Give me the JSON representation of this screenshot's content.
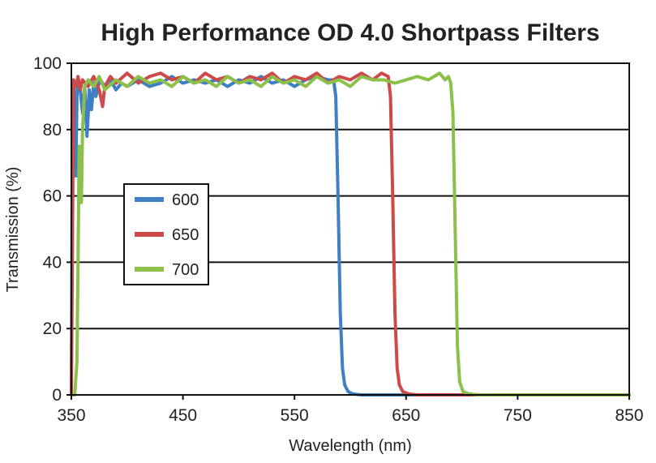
{
  "chart_data": {
    "type": "line",
    "title": "High Performance OD 4.0 Shortpass Filters",
    "xlabel": "Wavelength (nm)",
    "ylabel": "Transmission (%)",
    "xlim": [
      350,
      850
    ],
    "ylim": [
      0,
      100
    ],
    "xticks": [
      350,
      450,
      550,
      650,
      750,
      850
    ],
    "yticks": [
      0,
      20,
      40,
      60,
      80,
      100
    ],
    "grid": "horizontal",
    "legend_position": "left-middle",
    "series": [
      {
        "name": "600",
        "color": "#3f7fc3",
        "points": [
          [
            350,
            0
          ],
          [
            351,
            92
          ],
          [
            352,
            95
          ],
          [
            353,
            86
          ],
          [
            354,
            66
          ],
          [
            355,
            90
          ],
          [
            356,
            95
          ],
          [
            358,
            92
          ],
          [
            360,
            85
          ],
          [
            362,
            93
          ],
          [
            364,
            78
          ],
          [
            365,
            84
          ],
          [
            366,
            92
          ],
          [
            368,
            86
          ],
          [
            370,
            94
          ],
          [
            372,
            90
          ],
          [
            374,
            93
          ],
          [
            376,
            95
          ],
          [
            380,
            93
          ],
          [
            385,
            95
          ],
          [
            390,
            92
          ],
          [
            395,
            94
          ],
          [
            400,
            93
          ],
          [
            410,
            95
          ],
          [
            420,
            93
          ],
          [
            430,
            94
          ],
          [
            440,
            96
          ],
          [
            450,
            94
          ],
          [
            460,
            95
          ],
          [
            470,
            94
          ],
          [
            480,
            95
          ],
          [
            490,
            93
          ],
          [
            500,
            95
          ],
          [
            510,
            94
          ],
          [
            520,
            96
          ],
          [
            530,
            94
          ],
          [
            540,
            95
          ],
          [
            550,
            93
          ],
          [
            560,
            95
          ],
          [
            570,
            96
          ],
          [
            580,
            95
          ],
          [
            585,
            95
          ],
          [
            587,
            90
          ],
          [
            589,
            60
          ],
          [
            591,
            25
          ],
          [
            593,
            8
          ],
          [
            595,
            3
          ],
          [
            598,
            1
          ],
          [
            602,
            0.3
          ],
          [
            610,
            0
          ],
          [
            850,
            0
          ]
        ]
      },
      {
        "name": "650",
        "color": "#cc4a48",
        "points": [
          [
            350,
            0
          ],
          [
            352,
            95
          ],
          [
            354,
            93
          ],
          [
            356,
            96
          ],
          [
            358,
            92
          ],
          [
            360,
            95
          ],
          [
            365,
            93
          ],
          [
            370,
            96
          ],
          [
            375,
            92
          ],
          [
            378,
            87
          ],
          [
            380,
            93
          ],
          [
            385,
            96
          ],
          [
            390,
            94
          ],
          [
            400,
            97
          ],
          [
            410,
            94
          ],
          [
            420,
            96
          ],
          [
            430,
            97
          ],
          [
            440,
            95
          ],
          [
            450,
            96
          ],
          [
            460,
            94
          ],
          [
            470,
            97
          ],
          [
            480,
            95
          ],
          [
            490,
            96
          ],
          [
            500,
            94
          ],
          [
            510,
            96
          ],
          [
            520,
            95
          ],
          [
            530,
            97
          ],
          [
            540,
            94
          ],
          [
            550,
            96
          ],
          [
            560,
            95
          ],
          [
            570,
            97
          ],
          [
            580,
            94
          ],
          [
            590,
            96
          ],
          [
            600,
            95
          ],
          [
            610,
            97
          ],
          [
            620,
            95
          ],
          [
            628,
            97
          ],
          [
            634,
            96
          ],
          [
            636,
            90
          ],
          [
            638,
            60
          ],
          [
            640,
            25
          ],
          [
            642,
            8
          ],
          [
            644,
            3
          ],
          [
            647,
            1
          ],
          [
            652,
            0.3
          ],
          [
            660,
            0
          ],
          [
            850,
            0
          ]
        ]
      },
      {
        "name": "700",
        "color": "#8cc04a",
        "points": [
          [
            350,
            0
          ],
          [
            353,
            0
          ],
          [
            355,
            10
          ],
          [
            356,
            40
          ],
          [
            357,
            75
          ],
          [
            358,
            62
          ],
          [
            359,
            58
          ],
          [
            360,
            80
          ],
          [
            362,
            93
          ],
          [
            365,
            95
          ],
          [
            370,
            93
          ],
          [
            375,
            96
          ],
          [
            380,
            92
          ],
          [
            390,
            95
          ],
          [
            400,
            93
          ],
          [
            410,
            96
          ],
          [
            420,
            94
          ],
          [
            430,
            95
          ],
          [
            440,
            93
          ],
          [
            450,
            96
          ],
          [
            460,
            94
          ],
          [
            470,
            95
          ],
          [
            480,
            93
          ],
          [
            490,
            96
          ],
          [
            500,
            94
          ],
          [
            510,
            95
          ],
          [
            520,
            93
          ],
          [
            530,
            96
          ],
          [
            540,
            94
          ],
          [
            550,
            95
          ],
          [
            560,
            93
          ],
          [
            570,
            96
          ],
          [
            580,
            94
          ],
          [
            590,
            95
          ],
          [
            600,
            93
          ],
          [
            610,
            96
          ],
          [
            620,
            95
          ],
          [
            630,
            95
          ],
          [
            640,
            94
          ],
          [
            650,
            95
          ],
          [
            660,
            96
          ],
          [
            670,
            95
          ],
          [
            675,
            96
          ],
          [
            680,
            97
          ],
          [
            685,
            95
          ],
          [
            688,
            96
          ],
          [
            690,
            94
          ],
          [
            692,
            85
          ],
          [
            694,
            50
          ],
          [
            696,
            15
          ],
          [
            698,
            4
          ],
          [
            701,
            1
          ],
          [
            706,
            0.3
          ],
          [
            715,
            0
          ],
          [
            850,
            0
          ]
        ]
      }
    ]
  }
}
